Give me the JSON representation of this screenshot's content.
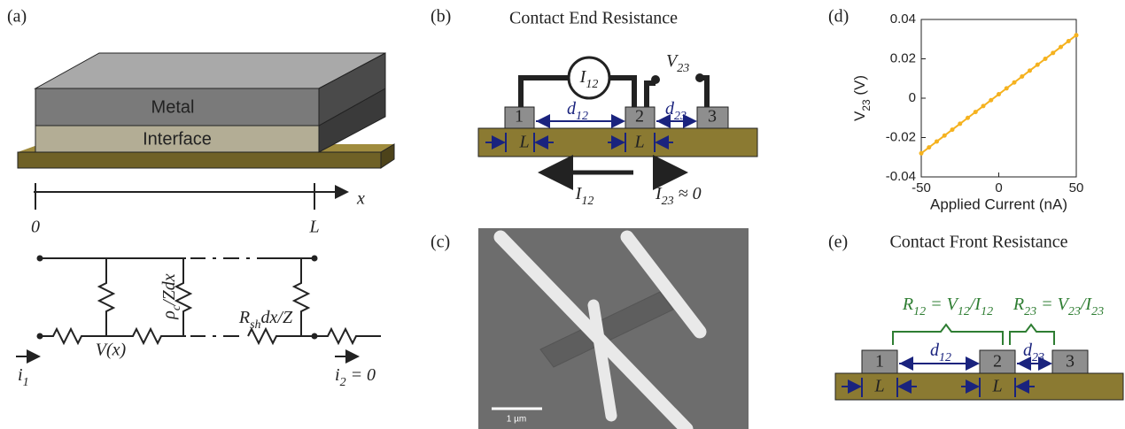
{
  "panels": {
    "a": {
      "label": "(a)",
      "layers": [
        "Metal",
        "Interface"
      ],
      "axis_var": "x",
      "axis_start": "0",
      "axis_end": "L",
      "rho": [
        {
          "t": "ρ"
        },
        {
          "t": "c",
          "sub": true
        },
        {
          "t": "/Zdx"
        }
      ],
      "rsh": [
        {
          "t": "R"
        },
        {
          "t": "sh",
          "sub": true
        },
        {
          "t": "dx/Z"
        }
      ],
      "vx": "V(x)",
      "i1": [
        {
          "t": "i"
        },
        {
          "t": "1",
          "sub": true
        }
      ],
      "i2": [
        {
          "t": "i"
        },
        {
          "t": "2",
          "sub": true
        },
        {
          "t": " = 0"
        }
      ]
    },
    "b": {
      "label": "(b)",
      "title": "Contact End Resistance",
      "pads": [
        "1",
        "2",
        "3"
      ],
      "source": [
        {
          "t": "I"
        },
        {
          "t": "12",
          "sub": true
        }
      ],
      "probe": [
        {
          "t": "V"
        },
        {
          "t": "23",
          "sub": true
        }
      ],
      "d12": [
        {
          "t": "d"
        },
        {
          "t": "12",
          "sub": true
        }
      ],
      "d23": [
        {
          "t": "d"
        },
        {
          "t": "23",
          "sub": true
        }
      ],
      "lengths": [
        "L",
        "L"
      ],
      "current12": [
        {
          "t": "I"
        },
        {
          "t": "12",
          "sub": true
        }
      ],
      "current23": [
        {
          "t": "I"
        },
        {
          "t": "23",
          "sub": true
        },
        {
          "t": " ≈ 0"
        }
      ]
    },
    "c": {
      "label": "(c)",
      "scale_bar": "1 µm"
    },
    "d": {
      "label": "(d)"
    },
    "e": {
      "label": "(e)",
      "title": "Contact Front Resistance",
      "r12": [
        {
          "t": "R"
        },
        {
          "t": "12",
          "sub": true
        },
        {
          "t": " = V"
        },
        {
          "t": "12",
          "sub": true
        },
        {
          "t": "/I"
        },
        {
          "t": "12",
          "sub": true
        }
      ],
      "r23": [
        {
          "t": "R"
        },
        {
          "t": "23",
          "sub": true
        },
        {
          "t": " = V"
        },
        {
          "t": "23",
          "sub": true
        },
        {
          "t": "/I"
        },
        {
          "t": "23",
          "sub": true
        }
      ],
      "pads": [
        "1",
        "2",
        "3"
      ],
      "d12": [
        {
          "t": "d"
        },
        {
          "t": "12",
          "sub": true
        }
      ],
      "d23": [
        {
          "t": "d"
        },
        {
          "t": "23",
          "sub": true
        }
      ],
      "lengths": [
        "L",
        "L"
      ]
    }
  },
  "chart_data": {
    "type": "line",
    "xlabel": "Applied Current (nA)",
    "ylabel": [
      {
        "t": "V"
      },
      {
        "t": "23",
        "sub": true
      },
      {
        "t": " (V)"
      }
    ],
    "x": [
      -50,
      -45,
      -40,
      -35,
      -30,
      -25,
      -20,
      -15,
      -10,
      -5,
      0,
      5,
      10,
      15,
      20,
      25,
      30,
      35,
      40,
      45,
      50
    ],
    "series": [
      {
        "color": "#f5b21f",
        "values": [
          -0.028,
          -0.025,
          -0.022,
          -0.019,
          -0.016,
          -0.013,
          -0.01,
          -0.007,
          -0.004,
          -0.001,
          0.002,
          0.005,
          0.008,
          0.011,
          0.014,
          0.017,
          0.02,
          0.023,
          0.026,
          0.029,
          0.032
        ]
      }
    ],
    "xlim": [
      -50,
      50
    ],
    "xticks": [
      -50,
      0,
      50
    ],
    "ylim": [
      -0.04,
      0.04
    ],
    "yticks": [
      -0.04,
      -0.02,
      0,
      0.02,
      0.04
    ]
  }
}
